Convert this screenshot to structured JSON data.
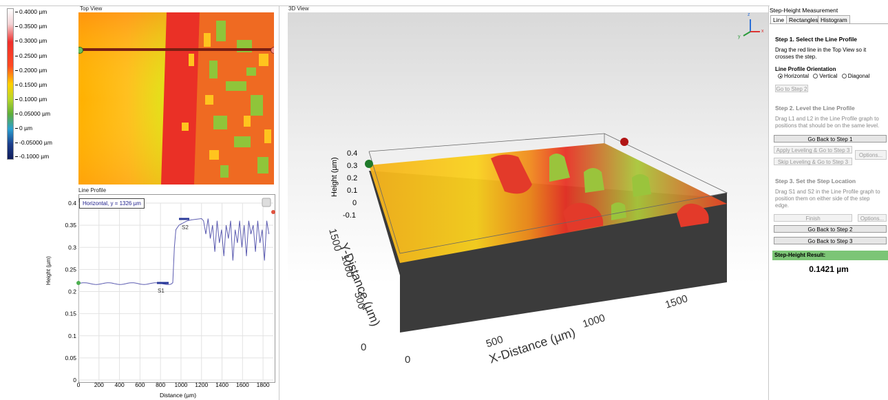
{
  "colorbar": {
    "labels": [
      "0.4000 µm",
      "0.3500 µm",
      "0.3000 µm",
      "0.2500 µm",
      "0.2000 µm",
      "0.1500 µm",
      "0.1000 µm",
      "0.05000 µm",
      "0 µm",
      "-0.05000 µm",
      "-0.1000 µm"
    ]
  },
  "top_view": {
    "title": "Top View"
  },
  "line_profile": {
    "title": "Line Profile",
    "legend": "Horizontal, y = 1326 µm",
    "xlabel": "Distance (µm)",
    "ylabel": "Height (µm)",
    "x_ticks": [
      "0",
      "200",
      "400",
      "600",
      "800",
      "1000",
      "1200",
      "1400",
      "1600",
      "1800"
    ],
    "y_ticks": [
      "0",
      "0.05",
      "0.1",
      "0.15",
      "0.2",
      "0.25",
      "0.3",
      "0.35",
      "0.4"
    ],
    "markers": {
      "s1": "S1",
      "s2": "S2"
    }
  },
  "view3d": {
    "title": "3D View",
    "z_label": "Height (µm)",
    "y_label": "Y-Distance (µm)",
    "x_label": "X-Distance (µm)",
    "z_ticks": [
      "0.4",
      "0.3",
      "0.2",
      "0.1",
      "0",
      "-0.1"
    ],
    "y_ticks": [
      "1500",
      "1000",
      "500",
      "0"
    ],
    "x_ticks": [
      "0",
      "500",
      "1000",
      "1500"
    ],
    "axis_icon": {
      "z": "z",
      "y": "y",
      "x": "x"
    }
  },
  "panel": {
    "title": "Step-Height Measurement",
    "tabs": [
      "Line",
      "Rectangles",
      "Histogram"
    ],
    "step1_title": "Step 1. Select the Line Profile",
    "step1_text": "Drag the red line in the Top View so it crosses the step.",
    "orientation_label": "Line Profile Orientation",
    "orientation_options": [
      "Horizontal",
      "Vertical",
      "Diagonal"
    ],
    "go_to_step2": "Go to Step 2",
    "step2_title": "Step 2. Level the Line Profile",
    "step2_text": "Drag L1 and L2 in the Line Profile graph to positions that should be on the same level.",
    "go_back_step1": "Go Back to Step 1",
    "apply_leveling": "Apply Leveling & Go to Step 3",
    "skip_leveling": "Skip Leveling & Go to Step 3",
    "options": "Options...",
    "step3_title": "Step 3. Set the Step Location",
    "step3_text": "Drag S1 and S2 in the Line Profile graph to position them on either side of the step edge.",
    "finish": "Finish",
    "options2": "Options...",
    "go_back_step2": "Go Back to Step 2",
    "go_back_step3": "Go Back to Step 3",
    "result_label": "Step-Height Result:",
    "result_value": "0.1421 µm"
  }
}
